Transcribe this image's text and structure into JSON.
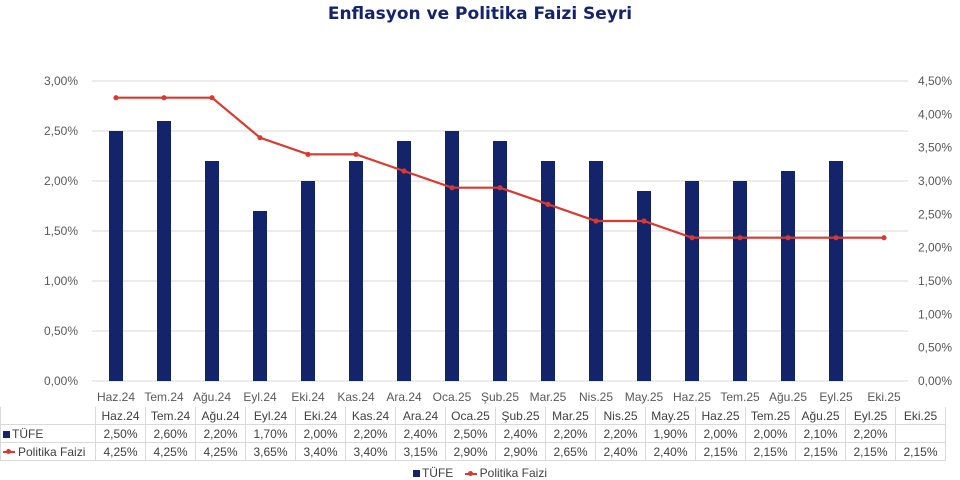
{
  "chart_data": {
    "type": "bar",
    "title": "Enflasyon ve Politika Faizi Seyri",
    "categories": [
      "Haz.24",
      "Tem.24",
      "Ağu.24",
      "Eyl.24",
      "Eki.24",
      "Kas.24",
      "Ara.24",
      "Oca.25",
      "Şub.25",
      "Mar.25",
      "Nis.25",
      "May.25",
      "Haz.25",
      "Tem.25",
      "Ağu.25",
      "Eyl.25",
      "Eki.25"
    ],
    "series": [
      {
        "name": "TÜFE",
        "type": "bar",
        "axis": "left",
        "color": "#14246b",
        "values": [
          2.5,
          2.6,
          2.2,
          1.7,
          2.0,
          2.2,
          2.4,
          2.5,
          2.4,
          2.2,
          2.2,
          1.9,
          2.0,
          2.0,
          2.1,
          2.2,
          null
        ],
        "labels": [
          "2,50%",
          "2,60%",
          "2,20%",
          "1,70%",
          "2,00%",
          "2,20%",
          "2,40%",
          "2,50%",
          "2,40%",
          "2,20%",
          "2,20%",
          "1,90%",
          "2,00%",
          "2,00%",
          "2,10%",
          "2,20%",
          ""
        ]
      },
      {
        "name": "Politika Faizi",
        "type": "line",
        "axis": "right",
        "color": "#d9392f",
        "values": [
          4.25,
          4.25,
          4.25,
          3.65,
          3.4,
          3.4,
          3.15,
          2.9,
          2.9,
          2.65,
          2.4,
          2.4,
          2.15,
          2.15,
          2.15,
          2.15,
          2.15
        ],
        "labels": [
          "4,25%",
          "4,25%",
          "4,25%",
          "3,65%",
          "3,40%",
          "3,40%",
          "3,15%",
          "2,90%",
          "2,90%",
          "2,65%",
          "2,40%",
          "2,40%",
          "2,15%",
          "2,15%",
          "2,15%",
          "2,15%",
          "2,15%"
        ]
      }
    ],
    "y_left": {
      "min": 0,
      "max": 3.0,
      "ticks": [
        "0,00%",
        "0,50%",
        "1,00%",
        "1,50%",
        "2,00%",
        "2,50%",
        "3,00%"
      ]
    },
    "y_right": {
      "min": 0,
      "max": 4.5,
      "ticks": [
        "0,00%",
        "0,50%",
        "1,00%",
        "1,50%",
        "2,00%",
        "2,50%",
        "3,00%",
        "3,50%",
        "4,00%",
        "4,50%"
      ]
    },
    "grid": true,
    "legend_position": "bottom",
    "data_table": true
  }
}
